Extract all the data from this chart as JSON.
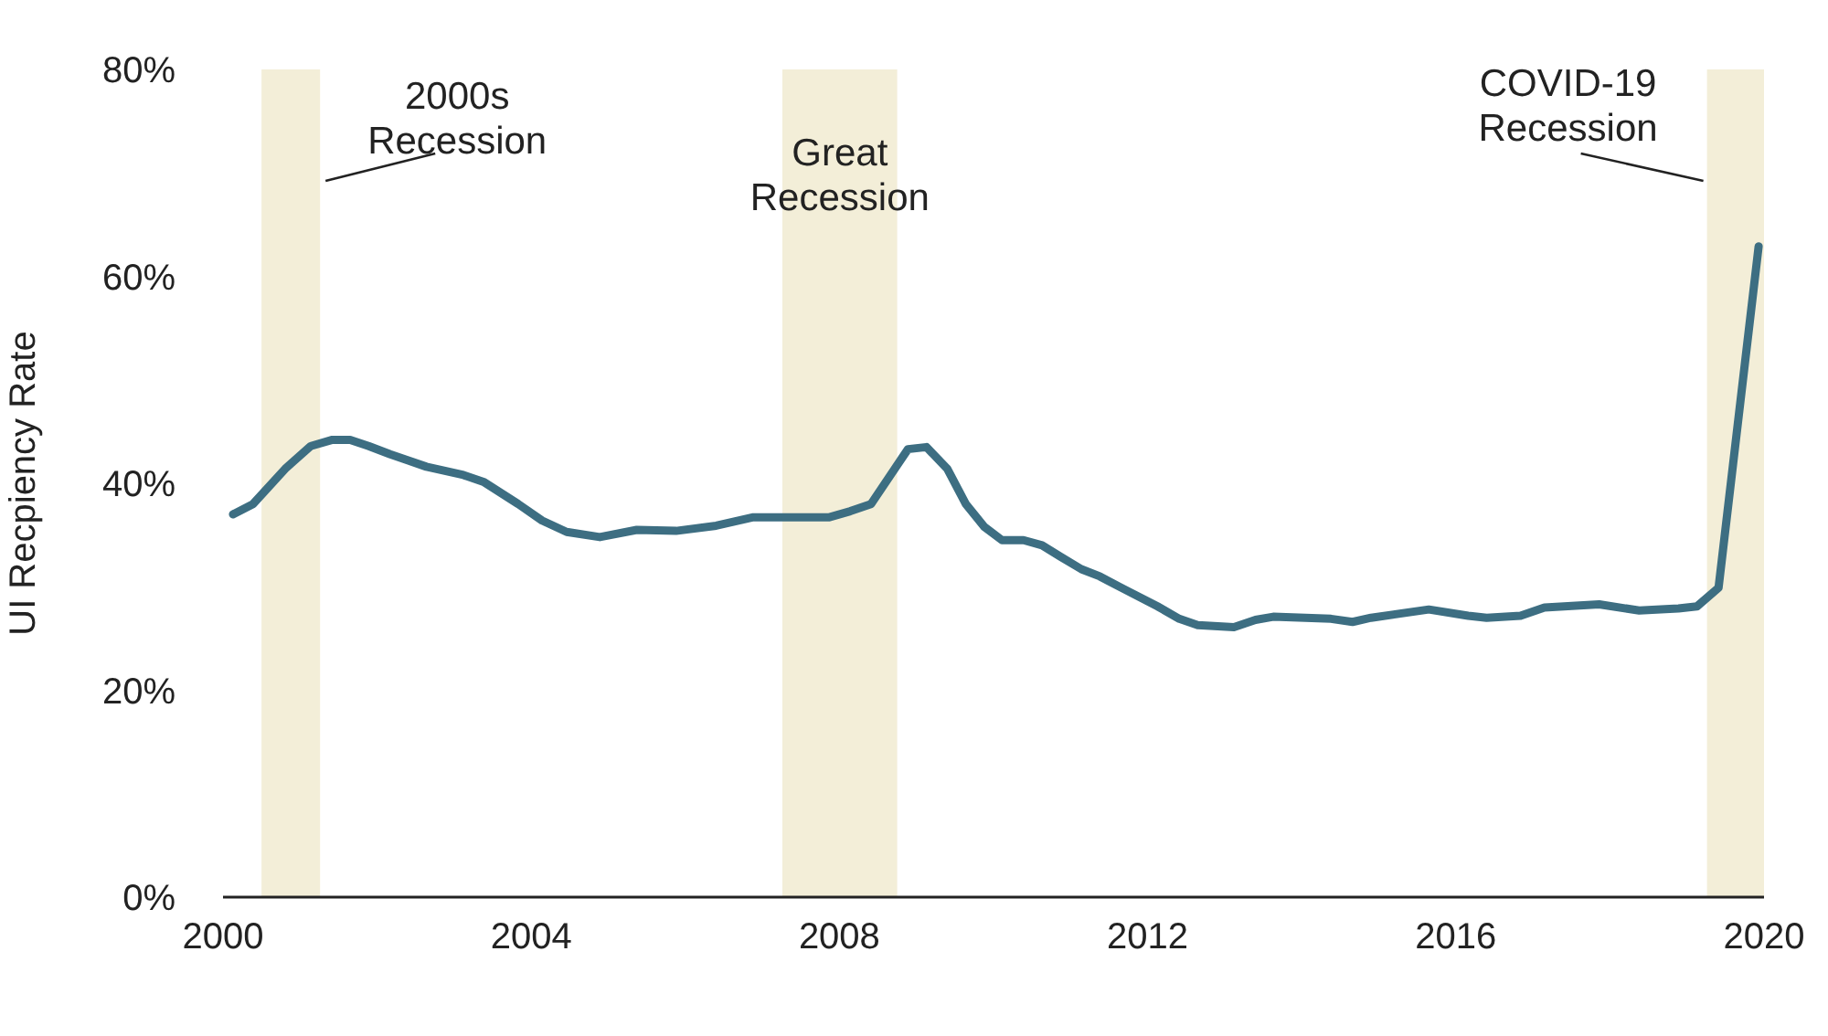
{
  "chart_data": {
    "type": "line",
    "ylabel": "UI Recpiency Rate",
    "x": [
      2000.13,
      2000.39,
      2000.82,
      2001.14,
      2001.42,
      2001.65,
      2001.89,
      2002.17,
      2002.64,
      2003.12,
      2003.39,
      2003.83,
      2004.14,
      2004.46,
      2004.89,
      2005.37,
      2005.88,
      2006.4,
      2006.87,
      2007.86,
      2008.14,
      2008.41,
      2008.89,
      2009.13,
      2009.4,
      2009.64,
      2009.88,
      2010.11,
      2010.39,
      2010.63,
      2010.87,
      2011.14,
      2011.38,
      2011.66,
      2012.13,
      2012.41,
      2012.65,
      2013.12,
      2013.4,
      2013.63,
      2014.38,
      2014.66,
      2014.9,
      2015.65,
      2016.16,
      2016.4,
      2016.84,
      2017.15,
      2017.86,
      2018.38,
      2018.89,
      2019.13,
      2019.41,
      2019.93
    ],
    "series": [
      {
        "color": "#3d6e82",
        "values": [
          37.0,
          38.0,
          41.5,
          43.6,
          44.2,
          44.2,
          43.6,
          42.8,
          41.6,
          40.8,
          40.1,
          38.0,
          36.4,
          35.3,
          34.8,
          35.5,
          35.4,
          35.9,
          36.7,
          36.7,
          37.3,
          38.0,
          43.3,
          43.5,
          41.4,
          38.0,
          35.8,
          34.5,
          34.5,
          34.0,
          32.9,
          31.7,
          31.0,
          29.9,
          28.1,
          26.9,
          26.3,
          26.1,
          26.8,
          27.1,
          26.9,
          26.6,
          27.0,
          27.8,
          27.2,
          27.0,
          27.2,
          28.0,
          28.3,
          27.7,
          27.9,
          28.1,
          29.9,
          62.9
        ]
      }
    ],
    "xlim": [
      2000,
      2020
    ],
    "xticks": [
      2000,
      2004,
      2008,
      2012,
      2016,
      2020
    ],
    "ylim": [
      0,
      80
    ],
    "yticks": [
      {
        "value": 0,
        "label": "0%"
      },
      {
        "value": 20,
        "label": "20%"
      },
      {
        "value": 40,
        "label": "40%"
      },
      {
        "value": 60,
        "label": "60%"
      },
      {
        "value": 80,
        "label": "80%"
      }
    ],
    "bands": [
      {
        "axis": "x",
        "from": 2000.5,
        "to": 2001.26,
        "label": "2000s\nRecession",
        "color": "#f3eed8"
      },
      {
        "axis": "x",
        "from": 2007.26,
        "to": 2008.75,
        "label": "Great\nRecession",
        "color": "#f3eed8"
      },
      {
        "axis": "x",
        "from": 2019.26,
        "to": 2020.0,
        "label": "COVID-19\nRecession",
        "color": "#f3eed8"
      }
    ],
    "grid": false,
    "legend": false,
    "marker": "none",
    "line_style": "solid"
  }
}
